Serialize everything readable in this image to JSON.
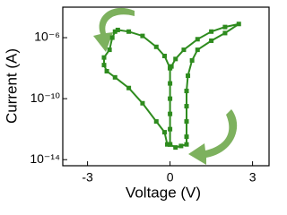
{
  "chart_data": {
    "type": "scatter",
    "x_label": "Voltage (V)",
    "y_label": "Current (A)",
    "xlim": [
      -3.9,
      3.6
    ],
    "xticks": [
      -3,
      0,
      3
    ],
    "ylim": [
      4e-15,
      0.0001
    ],
    "log_y": true,
    "yticks": [
      {
        "value": 1e-06,
        "label": "10⁻⁶"
      },
      {
        "value": 1e-10,
        "label": "10⁻¹⁰"
      },
      {
        "value": 1e-14,
        "label": "10⁻¹⁴"
      }
    ],
    "connect": true,
    "series": [
      {
        "color": "#2e8b1e",
        "x": [
          0,
          0.2,
          0.4,
          0.6,
          0.6,
          0.6,
          0.6,
          0.6,
          0.65,
          0.8,
          1.0,
          1.5,
          2.0,
          2.5,
          2.0,
          1.5,
          1.0,
          0.5,
          0.2,
          0.05,
          0,
          0,
          0,
          0,
          0,
          0,
          0,
          -0.2,
          -0.5,
          -1,
          -1.5,
          -1.9,
          -2.0,
          -2.1,
          -2.2,
          -2.4,
          -2.4,
          -2.3,
          -2.0,
          -1.5,
          -1,
          -0.5,
          -0.2,
          -0.1,
          0
        ],
        "values": [
          1e-13,
          6.3e-14,
          7.9e-14,
          1e-13,
          3.2e-13,
          3.2e-12,
          3.2e-11,
          3.2e-10,
          3.2e-09,
          3.2e-08,
          1.6e-07,
          6.3e-07,
          2e-06,
          7.9e-06,
          5e-06,
          2.5e-06,
          7.9e-07,
          1.6e-07,
          4e-08,
          1.3e-08,
          1e-08,
          1e-09,
          1e-10,
          1e-11,
          1e-12,
          1e-13,
          1e-08,
          6.3e-08,
          2.5e-07,
          1.3e-06,
          2.5e-06,
          3.2e-06,
          2.5e-06,
          1e-06,
          1.6e-07,
          5e-08,
          1.6e-08,
          6.3e-09,
          2.5e-09,
          5e-10,
          5e-11,
          3.2e-12,
          6.3e-13,
          1e-13,
          1e-13
        ]
      }
    ]
  }
}
